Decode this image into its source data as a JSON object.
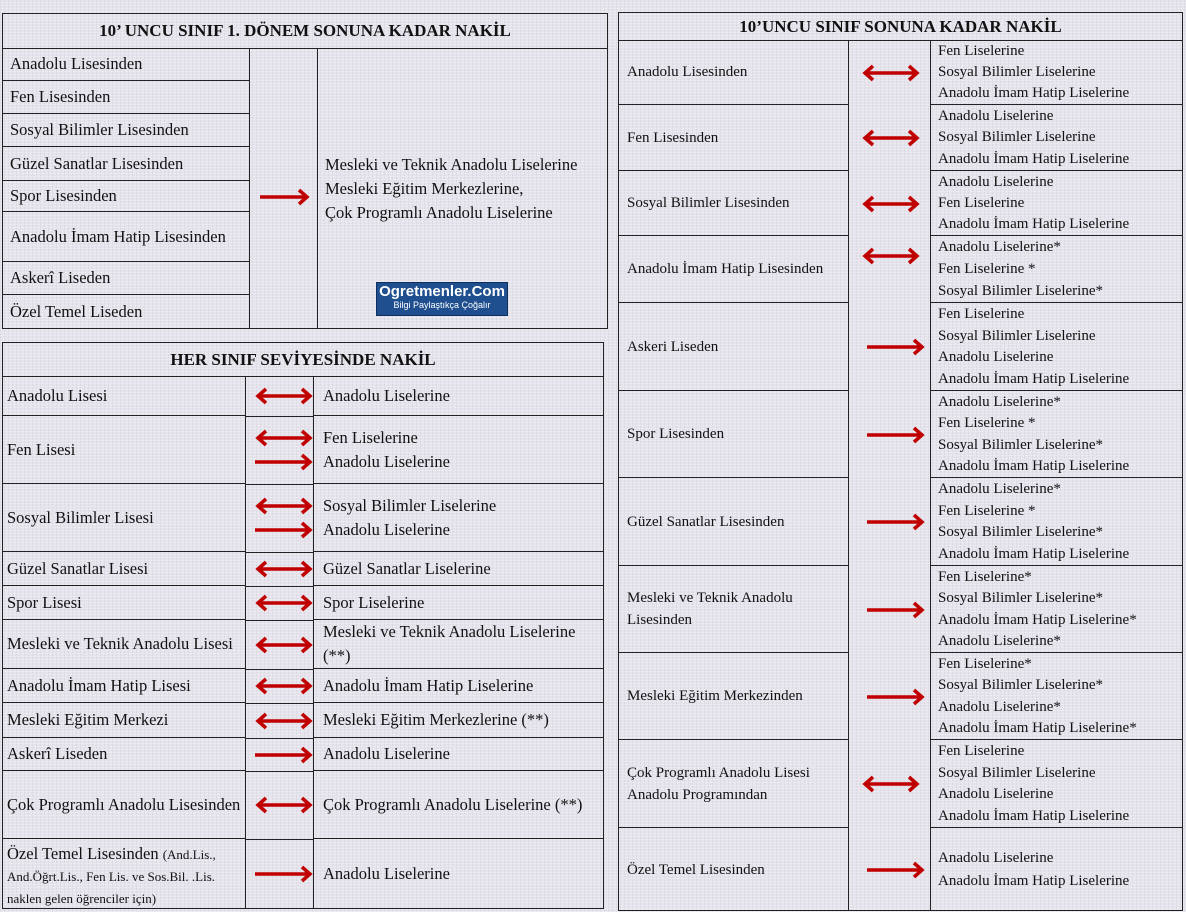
{
  "colors": {
    "arrow": "#c00000",
    "border": "#222222",
    "background": "#e5e3eb"
  },
  "table_1": {
    "title": "10’ UNCU SINIF 1. DÖNEM SONUNA KADAR NAKİL",
    "sources": [
      "Anadolu Lisesinden",
      "Fen Lisesinden",
      "Sosyal Bilimler Lisesinden",
      "Güzel Sanatlar Lisesinden",
      "Spor Lisesinden",
      "Anadolu İmam Hatip Lisesinden",
      "Askerî Liseden",
      "Özel Temel Liseden"
    ],
    "arrow": "right-arrow",
    "targets": [
      "Mesleki ve Teknik Anadolu Liselerine",
      "Mesleki Eğitim Merkezlerine,",
      "Çok Programlı Anadolu Liselerine"
    ]
  },
  "logo": {
    "name": "Ogretmenler.Com",
    "tagline": "Bilgi Paylaştıkça Çoğalır"
  },
  "table_2": {
    "title": "HER SINIF SEVİYESİNDE NAKİL",
    "rows": [
      {
        "source": "Anadolu Lisesi",
        "arrows": [
          "both"
        ],
        "targets": [
          "Anadolu Liselerine"
        ]
      },
      {
        "source": "Fen Lisesi",
        "arrows": [
          "both",
          "right"
        ],
        "targets": [
          "Fen Liselerine",
          "Anadolu Liselerine"
        ]
      },
      {
        "source": "Sosyal Bilimler Lisesi",
        "arrows": [
          "both",
          "right"
        ],
        "targets": [
          "Sosyal Bilimler Liselerine",
          "Anadolu Liselerine"
        ]
      },
      {
        "source": "Güzel Sanatlar Lisesi",
        "arrows": [
          "both"
        ],
        "targets": [
          "Güzel Sanatlar Liselerine"
        ]
      },
      {
        "source": "Spor Lisesi",
        "arrows": [
          "both"
        ],
        "targets": [
          "Spor Liselerine"
        ]
      },
      {
        "source": "Mesleki ve Teknik Anadolu Lisesi",
        "arrows": [
          "both"
        ],
        "targets": [
          "Mesleki ve Teknik Anadolu Liselerine (**)"
        ]
      },
      {
        "source": "Anadolu İmam Hatip Lisesi",
        "arrows": [
          "both"
        ],
        "targets": [
          "Anadolu İmam Hatip Liselerine"
        ]
      },
      {
        "source": "Mesleki Eğitim Merkezi",
        "arrows": [
          "both"
        ],
        "targets": [
          "Mesleki Eğitim Merkezlerine (**)"
        ]
      },
      {
        "source": "Askerî  Liseden",
        "arrows": [
          "right"
        ],
        "targets": [
          "Anadolu Liselerine"
        ]
      },
      {
        "source": "Çok Programlı Anadolu Lisesinden",
        "arrows": [
          "both"
        ],
        "targets": [
          "Çok Programlı Anadolu Liselerine (**)"
        ]
      },
      {
        "source": "Özel Temel Lisesinden",
        "source_note": "(And.Lis., And.Öğrt.Lis., Fen Lis. ve Sos.Bil. .Lis. naklen gelen öğrenciler için)",
        "arrows": [
          "right"
        ],
        "targets": [
          "Anadolu Liselerine"
        ]
      }
    ]
  },
  "table_3": {
    "title": "10’UNCU SINIF SONUNA KADAR NAKİL",
    "rows": [
      {
        "source": "Anadolu Lisesinden",
        "arrow": "both",
        "targets": [
          "Fen Liselerine",
          "Sosyal Bilimler Liselerine",
          "Anadolu İmam Hatip Liselerine"
        ]
      },
      {
        "source": "Fen Lisesinden",
        "arrow": "both",
        "targets": [
          "Anadolu Liselerine",
          "Sosyal Bilimler Liselerine",
          "Anadolu İmam Hatip Liselerine"
        ]
      },
      {
        "source": "Sosyal Bilimler Lisesinden",
        "arrow": "both",
        "targets": [
          "Anadolu Liselerine",
          "Fen Liselerine",
          "Anadolu İmam Hatip Liselerine"
        ]
      },
      {
        "source": "Anadolu İmam Hatip Lisesinden",
        "arrow": "both",
        "targets": [
          "Anadolu Liselerine*",
          "Fen Liselerine *",
          "Sosyal Bilimler Liselerine*"
        ]
      },
      {
        "source": "Askeri Liseden",
        "arrow": "right",
        "targets": [
          "Fen Liselerine",
          "Sosyal Bilimler Liselerine",
          "Anadolu Liselerine",
          "Anadolu İmam Hatip Liselerine"
        ]
      },
      {
        "source": "Spor Lisesinden",
        "arrow": "right",
        "targets": [
          "Anadolu Liselerine*",
          "Fen Liselerine *",
          "Sosyal Bilimler Liselerine*",
          "Anadolu İmam Hatip Liselerine"
        ]
      },
      {
        "source": "Güzel Sanatlar Lisesinden",
        "arrow": "right",
        "targets": [
          "Anadolu Liselerine*",
          "Fen Liselerine *",
          "Sosyal Bilimler Liselerine*",
          "Anadolu İmam Hatip Liselerine"
        ]
      },
      {
        "source": "Mesleki ve Teknik Anadolu Lisesinden",
        "arrow": "right",
        "targets": [
          "Fen Liselerine*",
          "Sosyal Bilimler Liselerine*",
          "Anadolu İmam Hatip Liselerine*",
          "Anadolu Liselerine*"
        ]
      },
      {
        "source": "Mesleki Eğitim Merkezinden",
        "arrow": "right",
        "targets": [
          "Fen Liselerine*",
          "Sosyal Bilimler Liselerine*",
          "Anadolu Liselerine*",
          "Anadolu İmam Hatip Liselerine*"
        ]
      },
      {
        "source": "Çok Programlı Anadolu Lisesi Anadolu Programından",
        "arrow": "both",
        "targets": [
          "Fen Liselerine",
          "Sosyal Bilimler Liselerine",
          "Anadolu Liselerine",
          "Anadolu İmam Hatip Liselerine"
        ]
      },
      {
        "source": "Özel Temel Lisesinden",
        "arrow": "right",
        "targets": [
          "Anadolu Liselerine",
          "Anadolu İmam Hatip Liselerine"
        ]
      }
    ]
  }
}
